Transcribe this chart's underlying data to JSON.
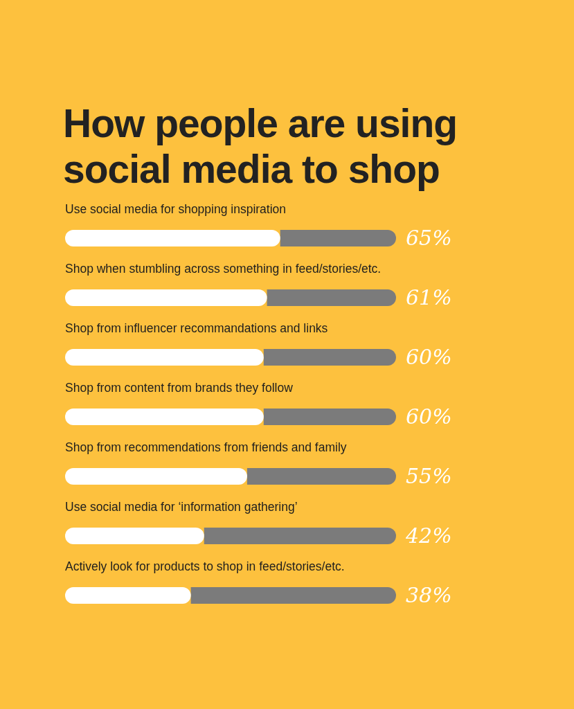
{
  "chart_data": {
    "type": "bar",
    "orientation": "horizontal",
    "stacked": true,
    "title": "How people are using social media to shop",
    "categories": [
      "Use social media for shopping inspiration",
      "Shop when stumbling across something in feed/stories/etc.",
      "Shop from influencer recommandations and links",
      "Shop from content from brands they follow",
      "Shop from recommendations from friends and family",
      "Use social media for ‘information gathering’",
      "Actively look for products to shop in feed/stories/etc."
    ],
    "series": [
      {
        "color": "#ffffff",
        "values": [
          65,
          61,
          60,
          60,
          55,
          42,
          38
        ],
        "value_labels": [
          "65%",
          "61%",
          "60%",
          "60%",
          "55%",
          "42%",
          "38%"
        ]
      },
      {
        "color": "#7b7b7b",
        "values": [
          35,
          39,
          40,
          40,
          45,
          58,
          62
        ]
      }
    ],
    "xlim": [
      0,
      100
    ],
    "tick_labels": false
  }
}
